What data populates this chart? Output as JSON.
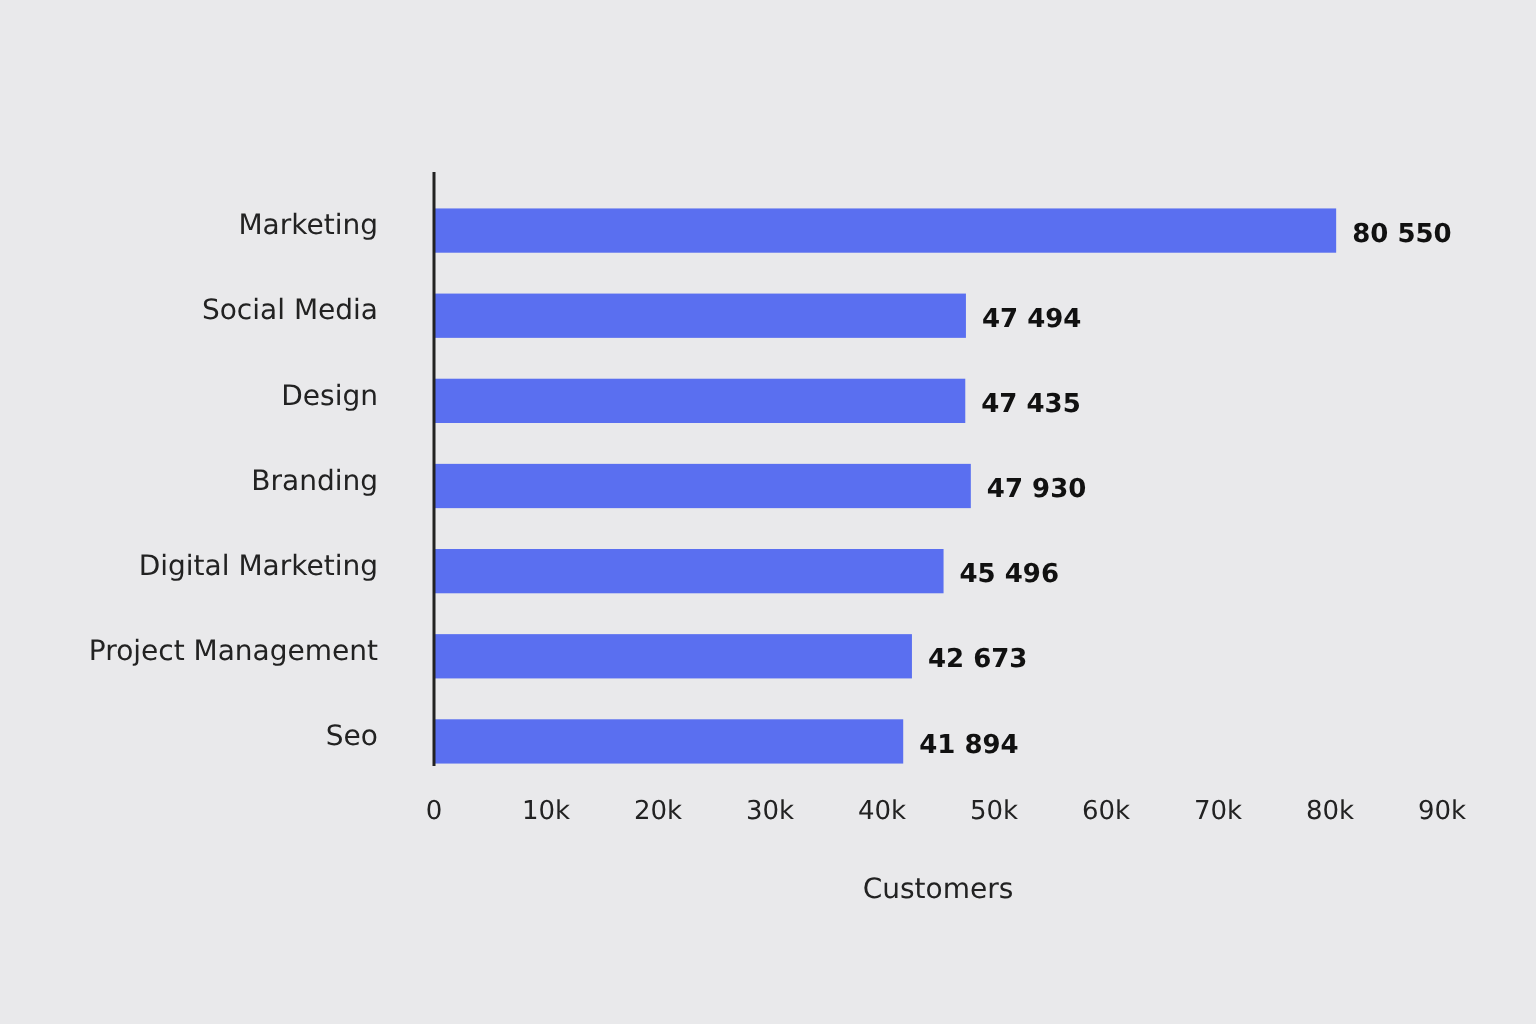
{
  "chart_data": {
    "type": "bar",
    "orientation": "horizontal",
    "categories": [
      "Marketing",
      "Social Media",
      "Design",
      "Branding",
      "Digital Marketing",
      "Project Management",
      "Seo"
    ],
    "values": [
      80550,
      47494,
      47435,
      47930,
      45496,
      42673,
      41894
    ],
    "value_labels": [
      "80 550",
      "47 494",
      "47 435",
      "47 930",
      "45 496",
      "42 673",
      "41 894"
    ],
    "color": "#5a6ff0",
    "xlabel": "Customers",
    "xlim": [
      0,
      90000
    ],
    "xticks": [
      0,
      {
        "value": 10000,
        "label": "10k"
      },
      {
        "value": 20000,
        "label": "20k"
      },
      {
        "value": 30000,
        "label": "30k"
      },
      {
        "value": 40000,
        "label": "40k"
      },
      {
        "value": 50000,
        "label": "50k"
      },
      {
        "value": 60000,
        "label": "60k"
      },
      {
        "value": 70000,
        "label": "70k"
      },
      {
        "value": 80000,
        "label": "80k"
      },
      {
        "value": 90000,
        "label": "90k"
      }
    ]
  }
}
